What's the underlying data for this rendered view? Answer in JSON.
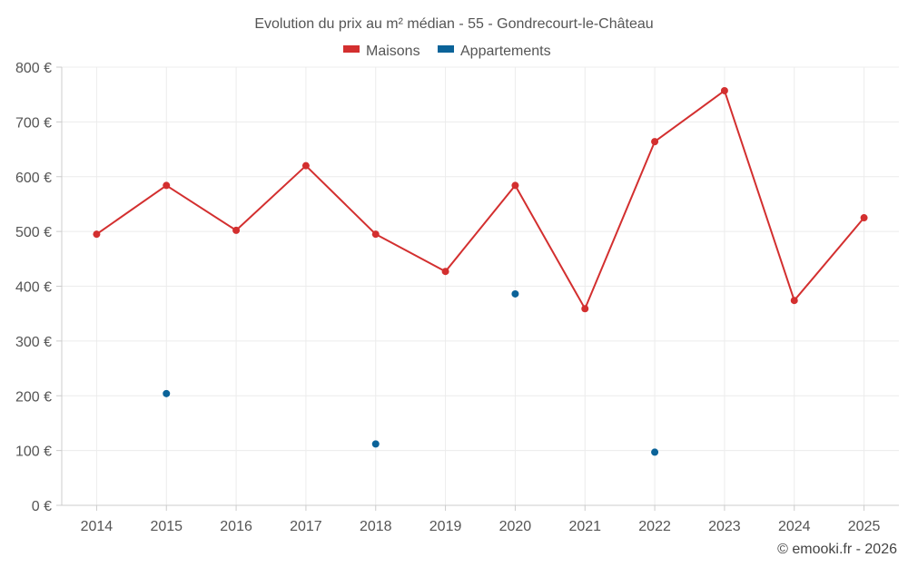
{
  "chart_data": {
    "type": "line",
    "title": "Evolution du prix au m² médian - 55 - Gondrecourt-le-Château",
    "categories": [
      "2014",
      "2015",
      "2016",
      "2017",
      "2018",
      "2019",
      "2020",
      "2021",
      "2022",
      "2023",
      "2024",
      "2025"
    ],
    "series": [
      {
        "name": "Maisons",
        "color": "#d32f2f",
        "values": [
          495,
          584,
          502,
          620,
          495,
          427,
          584,
          359,
          664,
          757,
          374,
          525
        ],
        "style": "line"
      },
      {
        "name": "Appartements",
        "color": "#0b6399",
        "values": [
          null,
          204,
          null,
          null,
          112,
          null,
          386,
          null,
          97,
          null,
          null,
          null
        ],
        "style": "points"
      }
    ],
    "ylim": [
      0,
      800
    ],
    "yticks": [
      0,
      100,
      200,
      300,
      400,
      500,
      600,
      700,
      800
    ],
    "ytick_labels": [
      "0 €",
      "100 €",
      "200 €",
      "300 €",
      "400 €",
      "500 €",
      "600 €",
      "700 €",
      "800 €"
    ],
    "grid": true,
    "legend_position": "top-center",
    "credit": "© emooki.fr - 2026"
  }
}
